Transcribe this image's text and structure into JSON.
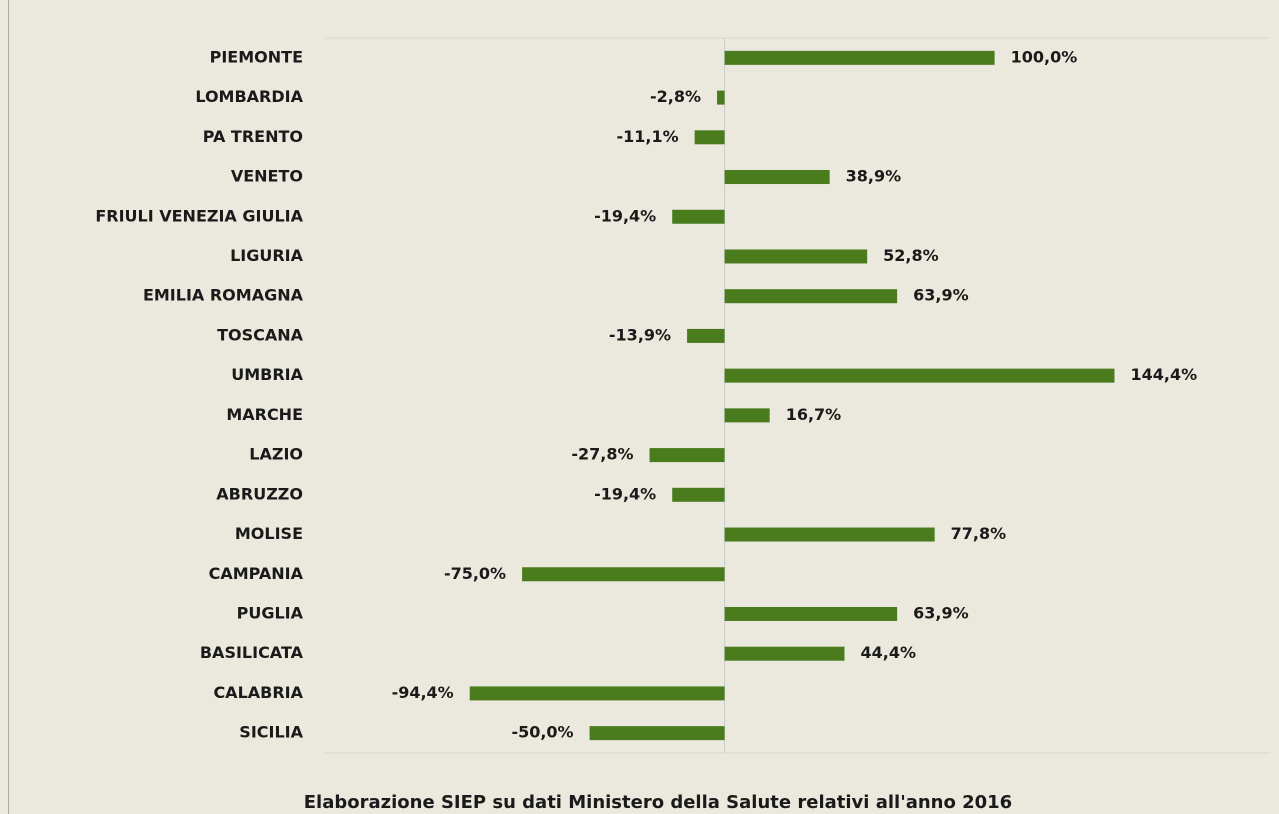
{
  "chart_data": {
    "type": "bar",
    "orientation": "horizontal",
    "categories": [
      "PIEMONTE",
      "LOMBARDIA",
      "PA TRENTO",
      "VENETO",
      "FRIULI VENEZIA GIULIA",
      "LIGURIA",
      "EMILIA ROMAGNA",
      "TOSCANA",
      "UMBRIA",
      "MARCHE",
      "LAZIO",
      "ABRUZZO",
      "MOLISE",
      "CAMPANIA",
      "PUGLIA",
      "BASILICATA",
      "CALABRIA",
      "SICILIA"
    ],
    "values": [
      100.0,
      -2.8,
      -11.1,
      38.9,
      -19.4,
      52.8,
      63.9,
      -13.9,
      144.4,
      16.7,
      -27.8,
      -19.4,
      77.8,
      -75.0,
      63.9,
      44.4,
      -94.4,
      -50.0
    ],
    "value_labels": [
      "100,0%",
      "-2,8%",
      "-11,1%",
      "38,9%",
      "-19,4%",
      "52,8%",
      "63,9%",
      "-13,9%",
      "144,4%",
      "16,7%",
      "-27,8%",
      "-19,4%",
      "77,8%",
      "-75,0%",
      "63,9%",
      "44,4%",
      "-94,4%",
      "-50,0%"
    ],
    "color": "#4a7c1e",
    "xlim": [
      -148,
      202
    ],
    "caption": "Elaborazione SIEP su dati Ministero della Salute relativi all'anno 2016"
  }
}
